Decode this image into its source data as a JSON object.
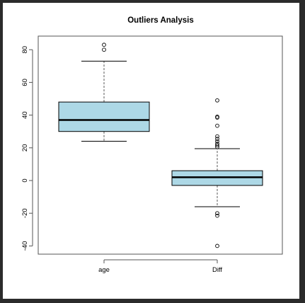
{
  "chart_data": {
    "type": "box",
    "title": "Outliers Analysis",
    "xlabel": "",
    "ylabel": "",
    "ylim": [
      -43,
      88
    ],
    "yticks": [
      80,
      60,
      40,
      20,
      0,
      -20,
      -40
    ],
    "grid": false,
    "colors": {
      "box_fill": "#add8e6",
      "median": "#000000",
      "axis": "#555555"
    },
    "boxes": [
      {
        "name": "age",
        "whisker_low": 24,
        "q1": 30,
        "median": 37,
        "q3": 48,
        "whisker_high": 73,
        "outliers": [
          80,
          83
        ]
      },
      {
        "name": "Diff",
        "whisker_low": -16,
        "q1": -3,
        "median": 2,
        "q3": 6,
        "whisker_high": 19.5,
        "outliers": [
          -20,
          -21.5,
          -40,
          20.5,
          21.5,
          22.5,
          24,
          25.5,
          27,
          33.5,
          38.5,
          39,
          49
        ]
      }
    ]
  }
}
